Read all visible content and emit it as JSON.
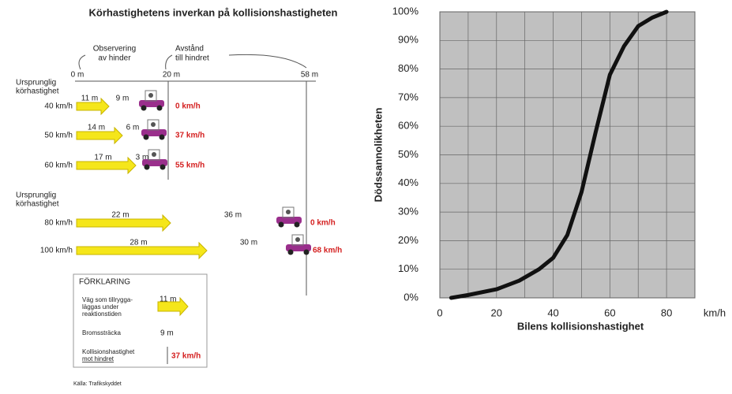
{
  "diagram": {
    "title": "Körhastighetens inverkan på kollisionshastigheten",
    "observe_label": [
      "Observering",
      "av hinder"
    ],
    "distance_label": [
      "Avstånd",
      "till hindret"
    ],
    "axis_marks": [
      "0 m",
      "20 m",
      "58 m"
    ],
    "group_label_1": [
      "Ursprunglig",
      "körhastighet"
    ],
    "group_label_2": [
      "Ursprunglig",
      "körhastighet"
    ],
    "rows": [
      {
        "speed": "40 km/h",
        "reaction": "11 m",
        "braking": "9 m",
        "collision": "0 km/h"
      },
      {
        "speed": "50 km/h",
        "reaction": "14 m",
        "braking": "6 m",
        "collision": "37 km/h"
      },
      {
        "speed": "60 km/h",
        "reaction": "17 m",
        "braking": "3 m",
        "collision": "55 km/h"
      },
      {
        "speed": "80 km/h",
        "reaction": "22 m",
        "braking": "36 m",
        "collision": "0 km/h"
      },
      {
        "speed": "100 km/h",
        "reaction": "28 m",
        "braking": "30 m",
        "collision": "68 km/h"
      }
    ],
    "legend": {
      "title": "FÖRKLARING",
      "reaction_text": [
        "Väg som tillrygga-",
        "läggas under",
        "reaktionstiden"
      ],
      "reaction_value": "11 m",
      "braking_text": "Bromssträcka",
      "braking_value": "9 m",
      "collision_text": [
        "Kollisionshastighet",
        "mot hindret"
      ],
      "collision_value": "37 km/h"
    },
    "source": "Källa: Trafikskyddet"
  },
  "chart_data": {
    "type": "line",
    "y_label": "Dödssannolikheten",
    "x_label": "Bilens kollisionshastighet",
    "x_unit": "km/h",
    "x": [
      4,
      10,
      20,
      28,
      35,
      40,
      45,
      50,
      55,
      60,
      65,
      70,
      75,
      80
    ],
    "series": [
      {
        "name": "Dödssannolikheten",
        "color": "#111111",
        "values": [
          0,
          1,
          3,
          6,
          10,
          14,
          22,
          37,
          58,
          78,
          88,
          95,
          98,
          100
        ]
      }
    ],
    "xlim": [
      0,
      90
    ],
    "xticks": [
      0,
      20,
      40,
      60,
      80
    ],
    "xminor": [
      10,
      30,
      50,
      70,
      90
    ],
    "ylim": [
      0,
      100
    ],
    "yticks": [
      {
        "value": 0,
        "label": "0%"
      },
      {
        "value": 10,
        "label": "10%"
      },
      {
        "value": 20,
        "label": "20%"
      },
      {
        "value": 30,
        "label": "30%"
      },
      {
        "value": 40,
        "label": "40%"
      },
      {
        "value": 50,
        "label": "50%"
      },
      {
        "value": 60,
        "label": "60%"
      },
      {
        "value": 70,
        "label": "70%"
      },
      {
        "value": 80,
        "label": "80%"
      },
      {
        "value": 90,
        "label": "90%"
      },
      {
        "value": 100,
        "label": "100%"
      }
    ],
    "grid": true,
    "plot_background": "#c0c0c0"
  }
}
